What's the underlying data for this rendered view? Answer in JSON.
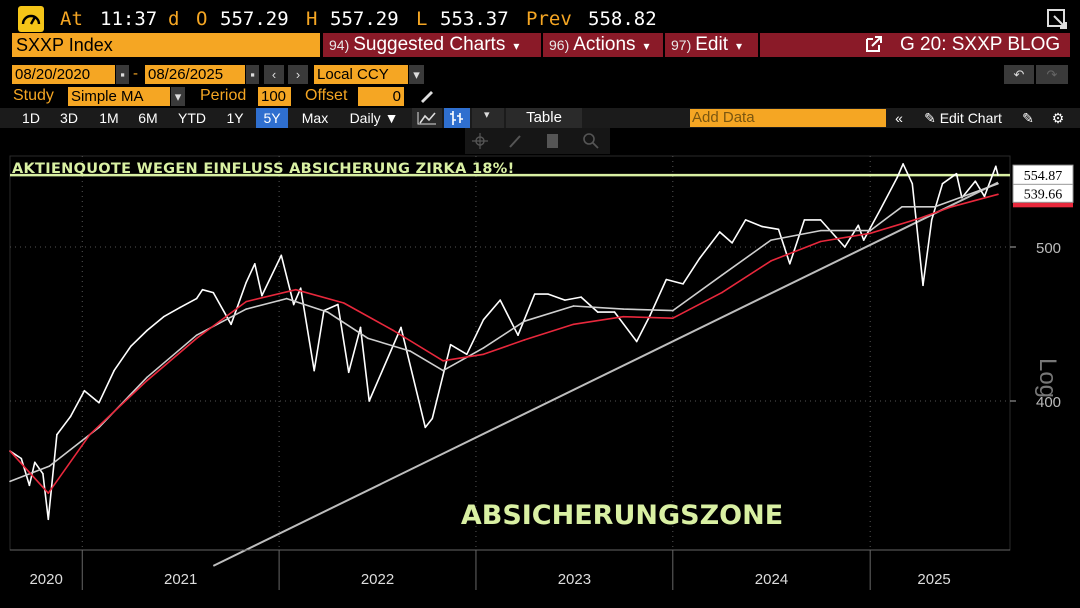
{
  "quote": {
    "at_label": "At",
    "time": "11:37",
    "d": "d",
    "o_label": "O",
    "open": "557.29",
    "h_label": "H",
    "high": "557.29",
    "l_label": "L",
    "low": "553.37",
    "prev_label": "Prev",
    "prev": "558.82"
  },
  "header": {
    "ticker": "SXXP Index",
    "suggested_num": "94)",
    "suggested": "Suggested Charts",
    "actions_num": "96)",
    "actions": "Actions",
    "edit_num": "97)",
    "edit": "Edit",
    "chart_name": "G 20: SXXP BLOG"
  },
  "controls": {
    "start_date": "08/20/2020",
    "end_date": "08/26/2025",
    "dash": "-",
    "currency": "Local CCY",
    "study_label": "Study",
    "study": "Simple MA",
    "period_label": "Period",
    "period": "100",
    "offset_label": "Offset",
    "offset": "0"
  },
  "toolbar": {
    "ranges": [
      "1D",
      "3D",
      "1M",
      "6M",
      "YTD",
      "1Y",
      "5Y",
      "Max"
    ],
    "active_range": "5Y",
    "frequency": "Daily",
    "table": "Table",
    "add_data_placeholder": "Add Data",
    "edit_chart": "Edit Chart"
  },
  "chart_data": {
    "type": "line",
    "scale": "log",
    "ylabel": "Log",
    "y_ticks": [
      400,
      500
    ],
    "x_ticks": [
      "2020",
      "2021",
      "2022",
      "2023",
      "2024",
      "2025"
    ],
    "x_range": [
      "2020-08-20",
      "2025-08-26"
    ],
    "last_price_tag": "554.87",
    "ma_tag": "539.66",
    "annotation_top": "AKTIENQUOTE WEGEN EINFLUSS ABSICHERUNG ZIRKA 18%!",
    "annotation_bottom": "ABSICHERUNGSZONE",
    "hline_value": 554.87,
    "trendline": {
      "from": [
        "2021-09-01",
        315
      ],
      "to": [
        "2025-08-26",
        549
      ]
    },
    "series": [
      {
        "key": "price",
        "color": "#ffffff",
        "points": [
          [
            "2020-08-20",
            372
          ],
          [
            "2020-09-10",
            368
          ],
          [
            "2020-09-25",
            354
          ],
          [
            "2020-10-05",
            366
          ],
          [
            "2020-10-20",
            360
          ],
          [
            "2020-10-30",
            337
          ],
          [
            "2020-11-15",
            381
          ],
          [
            "2020-12-10",
            391
          ],
          [
            "2021-01-05",
            406
          ],
          [
            "2021-02-01",
            399
          ],
          [
            "2021-03-01",
            418
          ],
          [
            "2021-04-01",
            433
          ],
          [
            "2021-05-01",
            443
          ],
          [
            "2021-06-01",
            452
          ],
          [
            "2021-07-01",
            458
          ],
          [
            "2021-08-01",
            464
          ],
          [
            "2021-08-12",
            470
          ],
          [
            "2021-09-01",
            468
          ],
          [
            "2021-10-04",
            447
          ],
          [
            "2021-11-01",
            475
          ],
          [
            "2021-11-17",
            488
          ],
          [
            "2021-11-30",
            466
          ],
          [
            "2022-01-05",
            494
          ],
          [
            "2022-01-28",
            460
          ],
          [
            "2022-02-10",
            471
          ],
          [
            "2022-03-07",
            418
          ],
          [
            "2022-03-25",
            456
          ],
          [
            "2022-04-20",
            460
          ],
          [
            "2022-05-10",
            417
          ],
          [
            "2022-06-01",
            445
          ],
          [
            "2022-06-17",
            400
          ],
          [
            "2022-08-15",
            445
          ],
          [
            "2022-09-29",
            385
          ],
          [
            "2022-10-12",
            390
          ],
          [
            "2022-11-15",
            434
          ],
          [
            "2022-12-15",
            428
          ],
          [
            "2023-01-15",
            450
          ],
          [
            "2023-02-15",
            463
          ],
          [
            "2023-03-20",
            440
          ],
          [
            "2023-04-20",
            467
          ],
          [
            "2023-05-15",
            467
          ],
          [
            "2023-06-15",
            463
          ],
          [
            "2023-07-15",
            465
          ],
          [
            "2023-08-15",
            455
          ],
          [
            "2023-09-15",
            455
          ],
          [
            "2023-10-26",
            436
          ],
          [
            "2023-11-20",
            453
          ],
          [
            "2023-12-20",
            477
          ],
          [
            "2024-01-20",
            474
          ],
          [
            "2024-02-20",
            492
          ],
          [
            "2024-03-28",
            511
          ],
          [
            "2024-04-20",
            503
          ],
          [
            "2024-05-15",
            520
          ],
          [
            "2024-06-15",
            515
          ],
          [
            "2024-07-15",
            513
          ],
          [
            "2024-08-05",
            488
          ],
          [
            "2024-09-01",
            520
          ],
          [
            "2024-10-01",
            520
          ],
          [
            "2024-11-15",
            500
          ],
          [
            "2024-12-10",
            516
          ],
          [
            "2024-12-20",
            505
          ],
          [
            "2025-01-20",
            528
          ],
          [
            "2025-02-20",
            553
          ],
          [
            "2025-03-03",
            564
          ],
          [
            "2025-03-20",
            548
          ],
          [
            "2025-04-09",
            473
          ],
          [
            "2025-04-25",
            520
          ],
          [
            "2025-05-15",
            548
          ],
          [
            "2025-06-10",
            556
          ],
          [
            "2025-06-20",
            537
          ],
          [
            "2025-07-15",
            550
          ],
          [
            "2025-08-01",
            538
          ],
          [
            "2025-08-22",
            562
          ],
          [
            "2025-08-26",
            554.87
          ]
        ]
      },
      {
        "key": "ma_fast",
        "color": "#cfcfcf",
        "points": [
          [
            "2020-08-20",
            356
          ],
          [
            "2020-11-01",
            364
          ],
          [
            "2021-02-01",
            385
          ],
          [
            "2021-05-01",
            414
          ],
          [
            "2021-08-01",
            440
          ],
          [
            "2021-11-01",
            457
          ],
          [
            "2022-01-15",
            464
          ],
          [
            "2022-04-01",
            455
          ],
          [
            "2022-06-15",
            438
          ],
          [
            "2022-09-01",
            430
          ],
          [
            "2022-11-01",
            418
          ],
          [
            "2023-01-15",
            432
          ],
          [
            "2023-04-01",
            449
          ],
          [
            "2023-07-01",
            459
          ],
          [
            "2023-10-01",
            457
          ],
          [
            "2024-01-01",
            456
          ],
          [
            "2024-04-01",
            480
          ],
          [
            "2024-07-01",
            505
          ],
          [
            "2024-10-01",
            512
          ],
          [
            "2025-01-01",
            512
          ],
          [
            "2025-03-01",
            530
          ],
          [
            "2025-05-01",
            530
          ],
          [
            "2025-08-26",
            548
          ]
        ]
      },
      {
        "key": "ma_slow",
        "color": "#e8283c",
        "points": [
          [
            "2020-08-20",
            372
          ],
          [
            "2020-10-30",
            350
          ],
          [
            "2021-01-15",
            381
          ],
          [
            "2021-05-01",
            412
          ],
          [
            "2021-08-01",
            438
          ],
          [
            "2021-11-01",
            462
          ],
          [
            "2022-02-01",
            470
          ],
          [
            "2022-05-01",
            461
          ],
          [
            "2022-08-01",
            443
          ],
          [
            "2022-11-01",
            424
          ],
          [
            "2023-01-15",
            428
          ],
          [
            "2023-04-01",
            437
          ],
          [
            "2023-07-01",
            447
          ],
          [
            "2023-10-01",
            452
          ],
          [
            "2024-01-01",
            451
          ],
          [
            "2024-04-01",
            468
          ],
          [
            "2024-07-01",
            490
          ],
          [
            "2024-10-01",
            504
          ],
          [
            "2025-01-01",
            510
          ],
          [
            "2025-04-01",
            521
          ],
          [
            "2025-06-01",
            530
          ],
          [
            "2025-08-26",
            539.66
          ]
        ]
      }
    ]
  }
}
